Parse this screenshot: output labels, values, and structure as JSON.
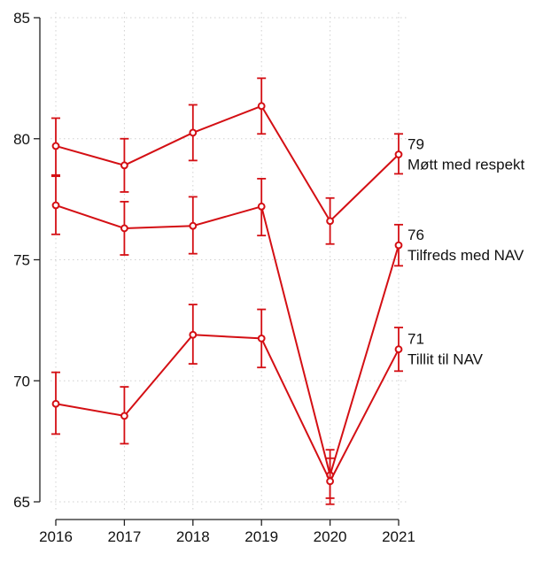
{
  "chart_data": {
    "type": "line",
    "title": "",
    "xlabel": "",
    "ylabel": "",
    "x": [
      2016,
      2017,
      2018,
      2019,
      2020,
      2021
    ],
    "x_tick_labels": [
      "2016",
      "2017",
      "2018",
      "2019",
      "2020",
      "2021"
    ],
    "y_ticks": [
      65,
      70,
      75,
      80,
      85
    ],
    "y_tick_labels": [
      "65",
      "70",
      "75",
      "80",
      "85"
    ],
    "ylim": [
      65,
      85
    ],
    "grid": true,
    "series_color": "#d40f14",
    "error_bars": true,
    "series": [
      {
        "name": "Møtt med respekt",
        "values": [
          79.7,
          78.9,
          80.25,
          81.35,
          76.6,
          79.35
        ],
        "lower": [
          78.5,
          77.8,
          79.1,
          80.2,
          75.65,
          78.55
        ],
        "upper": [
          80.85,
          80.0,
          81.4,
          82.5,
          77.55,
          80.2
        ],
        "end_value_label": "79",
        "end_name_label": "Møtt med respekt"
      },
      {
        "name": "Tilfreds med NAV",
        "values": [
          77.25,
          76.3,
          76.4,
          77.2,
          66.1,
          75.6
        ],
        "lower": [
          76.05,
          75.2,
          75.25,
          76.0,
          65.15,
          74.75
        ],
        "upper": [
          78.45,
          77.4,
          77.6,
          78.35,
          67.15,
          76.45
        ],
        "end_value_label": "76",
        "end_name_label": "Tilfreds med NAV"
      },
      {
        "name": "Tillit til NAV",
        "values": [
          69.05,
          68.55,
          71.9,
          71.75,
          65.85,
          71.3
        ],
        "lower": [
          67.8,
          67.4,
          70.7,
          70.55,
          64.9,
          70.4
        ],
        "upper": [
          70.35,
          69.75,
          73.15,
          72.95,
          66.8,
          72.2
        ],
        "end_value_label": "71",
        "end_name_label": "Tillit til NAV"
      }
    ]
  }
}
